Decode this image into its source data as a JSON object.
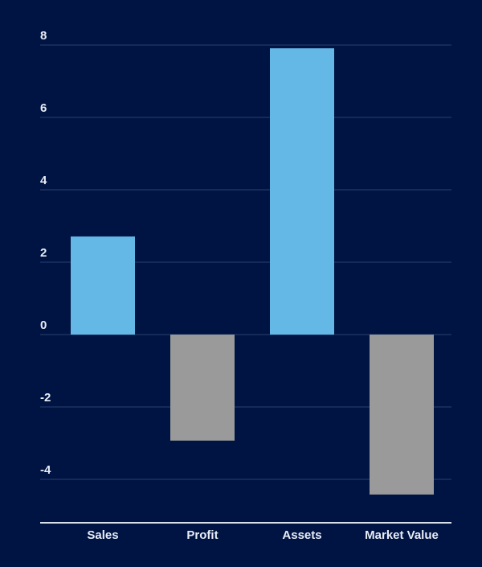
{
  "chart_data": {
    "type": "bar",
    "categories": [
      "Sales",
      "Profit",
      "Assets",
      "Market Value"
    ],
    "values": [
      2.71,
      -2.93,
      7.91,
      -4.42
    ],
    "colors": [
      "#63b8e6",
      "#9a9a9a",
      "#63b8e6",
      "#9a9a9a"
    ],
    "ylim": [
      -5.2,
      8
    ],
    "yticks": [
      -4,
      -2,
      0,
      2,
      4,
      6,
      8
    ],
    "grid": true
  }
}
